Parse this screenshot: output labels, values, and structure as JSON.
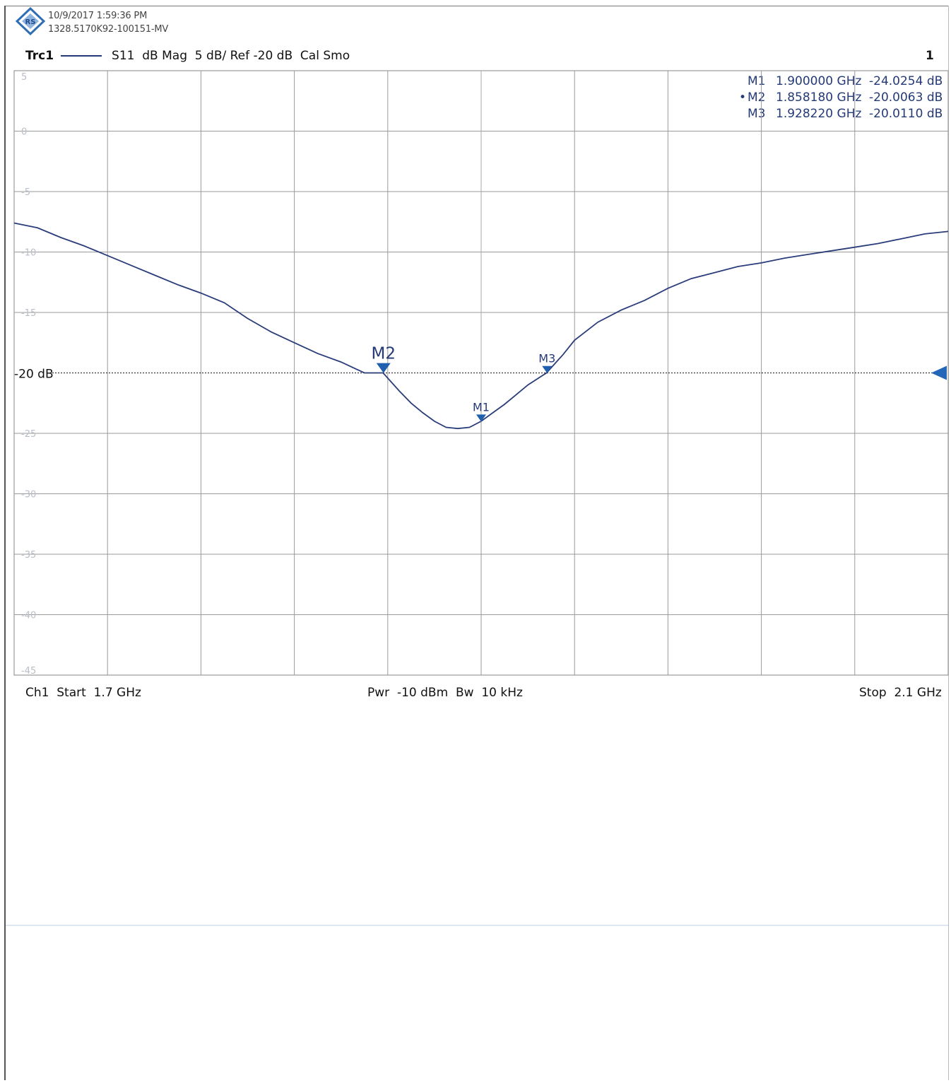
{
  "header": {
    "timestamp": "10/9/2017 1:59:36 PM",
    "serial": "1328.5170K92-100151-MV",
    "trace_label": "Trc1",
    "trace_info": "S11  dB Mag  5 dB/ Ref -20 dB  Cal Smo",
    "channel_number": "1",
    "logo_text": "RS"
  },
  "markers": [
    {
      "bullet": "",
      "name": "M1",
      "freq": "1.900000 GHz",
      "value": "-24.0254 dB"
    },
    {
      "bullet": "•",
      "name": "M2",
      "freq": "1.858180 GHz",
      "value": "-20.0063 dB"
    },
    {
      "bullet": "",
      "name": "M3",
      "freq": "1.928220 GHz",
      "value": "-20.0110 dB"
    }
  ],
  "footer": {
    "start": "Ch1  Start  1.7 GHz",
    "power_bw": "Pwr  -10 dBm  Bw  10 kHz",
    "stop": "Stop  2.1 GHz"
  },
  "colors": {
    "trace": "#2a3d7a",
    "marker": "#1f5fae",
    "grid": "#9a9a9a",
    "ref_arrow": "#2466b8"
  },
  "chart_data": {
    "type": "line",
    "title": "",
    "xlabel": "",
    "ylabel": "",
    "xlim": [
      1.7,
      2.1
    ],
    "ylim": [
      -45,
      5
    ],
    "y_ticks": [
      5,
      0,
      -5,
      -10,
      -15,
      -20,
      -25,
      -30,
      -35,
      -40,
      -45
    ],
    "y_tick_labels": [
      "5",
      "0",
      "-5",
      "-10",
      "-15",
      "-20",
      "-25",
      "-30",
      "-35",
      "-40",
      "-45"
    ],
    "reference_level": -20,
    "reference_label": "-20 dB",
    "grid": true,
    "x_divisions": 10,
    "series": [
      {
        "x": [
          1.7,
          1.71,
          1.72,
          1.73,
          1.74,
          1.75,
          1.76,
          1.77,
          1.78,
          1.79,
          1.8,
          1.81,
          1.82,
          1.83,
          1.84,
          1.85,
          1.858,
          1.865,
          1.87,
          1.875,
          1.88,
          1.885,
          1.89,
          1.895,
          1.9,
          1.905,
          1.91,
          1.915,
          1.92,
          1.928,
          1.935,
          1.94,
          1.95,
          1.96,
          1.97,
          1.98,
          1.99,
          2.0,
          2.01,
          2.02,
          2.03,
          2.04,
          2.05,
          2.06,
          2.07,
          2.08,
          2.09,
          2.1
        ],
        "y": [
          -7.6,
          -8.0,
          -8.8,
          -9.5,
          -10.3,
          -11.1,
          -11.9,
          -12.7,
          -13.4,
          -14.2,
          -15.5,
          -16.6,
          -17.5,
          -18.4,
          -19.1,
          -20.0,
          -20.0,
          -21.5,
          -22.5,
          -23.3,
          -24.0,
          -24.5,
          -24.6,
          -24.5,
          -24.0,
          -23.3,
          -22.6,
          -21.8,
          -21.0,
          -20.0,
          -18.5,
          -17.3,
          -15.8,
          -14.8,
          -14.0,
          -13.0,
          -12.2,
          -11.7,
          -11.2,
          -10.9,
          -10.5,
          -10.2,
          -9.9,
          -9.6,
          -9.3,
          -8.9,
          -8.5,
          -8.3
        ]
      }
    ],
    "marker_points": [
      {
        "name": "M1",
        "x": 1.9,
        "y": -24.0254
      },
      {
        "name": "M2",
        "x": 1.85818,
        "y": -20.0063
      },
      {
        "name": "M3",
        "x": 1.92822,
        "y": -20.011
      }
    ]
  }
}
